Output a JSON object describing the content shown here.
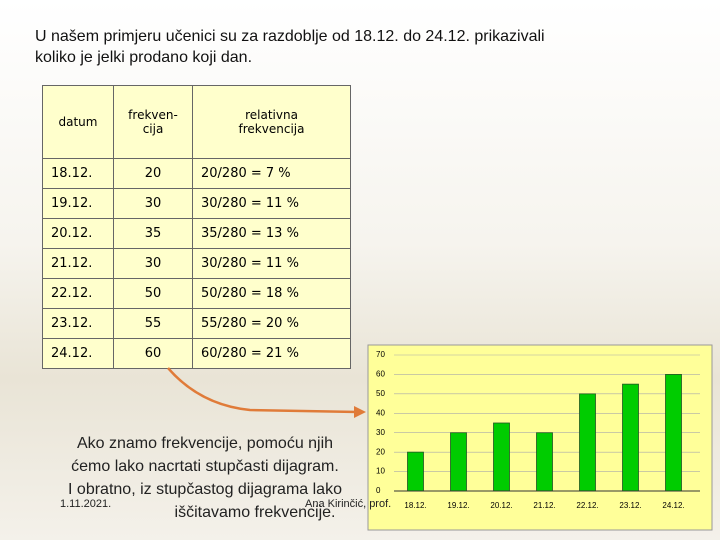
{
  "title": {
    "lines": [
      "U našem primjeru učenici su za razdoblje od 18.12. do 24.12. prikazivali",
      "koliko je jelki prodano koji dan."
    ]
  },
  "table": {
    "header": [
      [
        "datum"
      ],
      [
        "frekven-",
        "cija"
      ],
      [
        "relativna",
        "frekvencija"
      ]
    ],
    "rows": [
      [
        "18.12.",
        "20",
        "20/280 = 7 %"
      ],
      [
        "19.12.",
        "30",
        "30/280 = 11 %"
      ],
      [
        "20.12.",
        "35",
        "35/280 = 13 %"
      ],
      [
        "21.12.",
        "30",
        "30/280 = 11 %"
      ],
      [
        "22.12.",
        "50",
        "50/280 = 18 %"
      ],
      [
        "23.12.",
        "55",
        "55/280 = 20 %"
      ],
      [
        "24.12.",
        "60",
        "60/280 = 21 %"
      ]
    ]
  },
  "note": {
    "lines": [
      "Ako znamo frekvencije, pomoću njih",
      "ćemo lako nacrtati stupčasti dijagram.",
      "I obratno, iz stupčastog dijagrama lako",
      "iščitavamo frekvencije."
    ]
  },
  "footer": {
    "date": "1.11.2021.",
    "author": "Ana Kirinčić, prof."
  },
  "chart_data": {
    "type": "bar",
    "categories": [
      "18.12.",
      "19.12.",
      "20.12.",
      "21.12.",
      "22.12.",
      "23.12.",
      "24.12."
    ],
    "values": [
      20,
      30,
      35,
      30,
      50,
      55,
      60
    ],
    "color": "#00cc00",
    "ylim": [
      0,
      70
    ],
    "yticks": [
      0,
      10,
      20,
      30,
      40,
      50,
      60,
      70
    ],
    "grid": true
  }
}
